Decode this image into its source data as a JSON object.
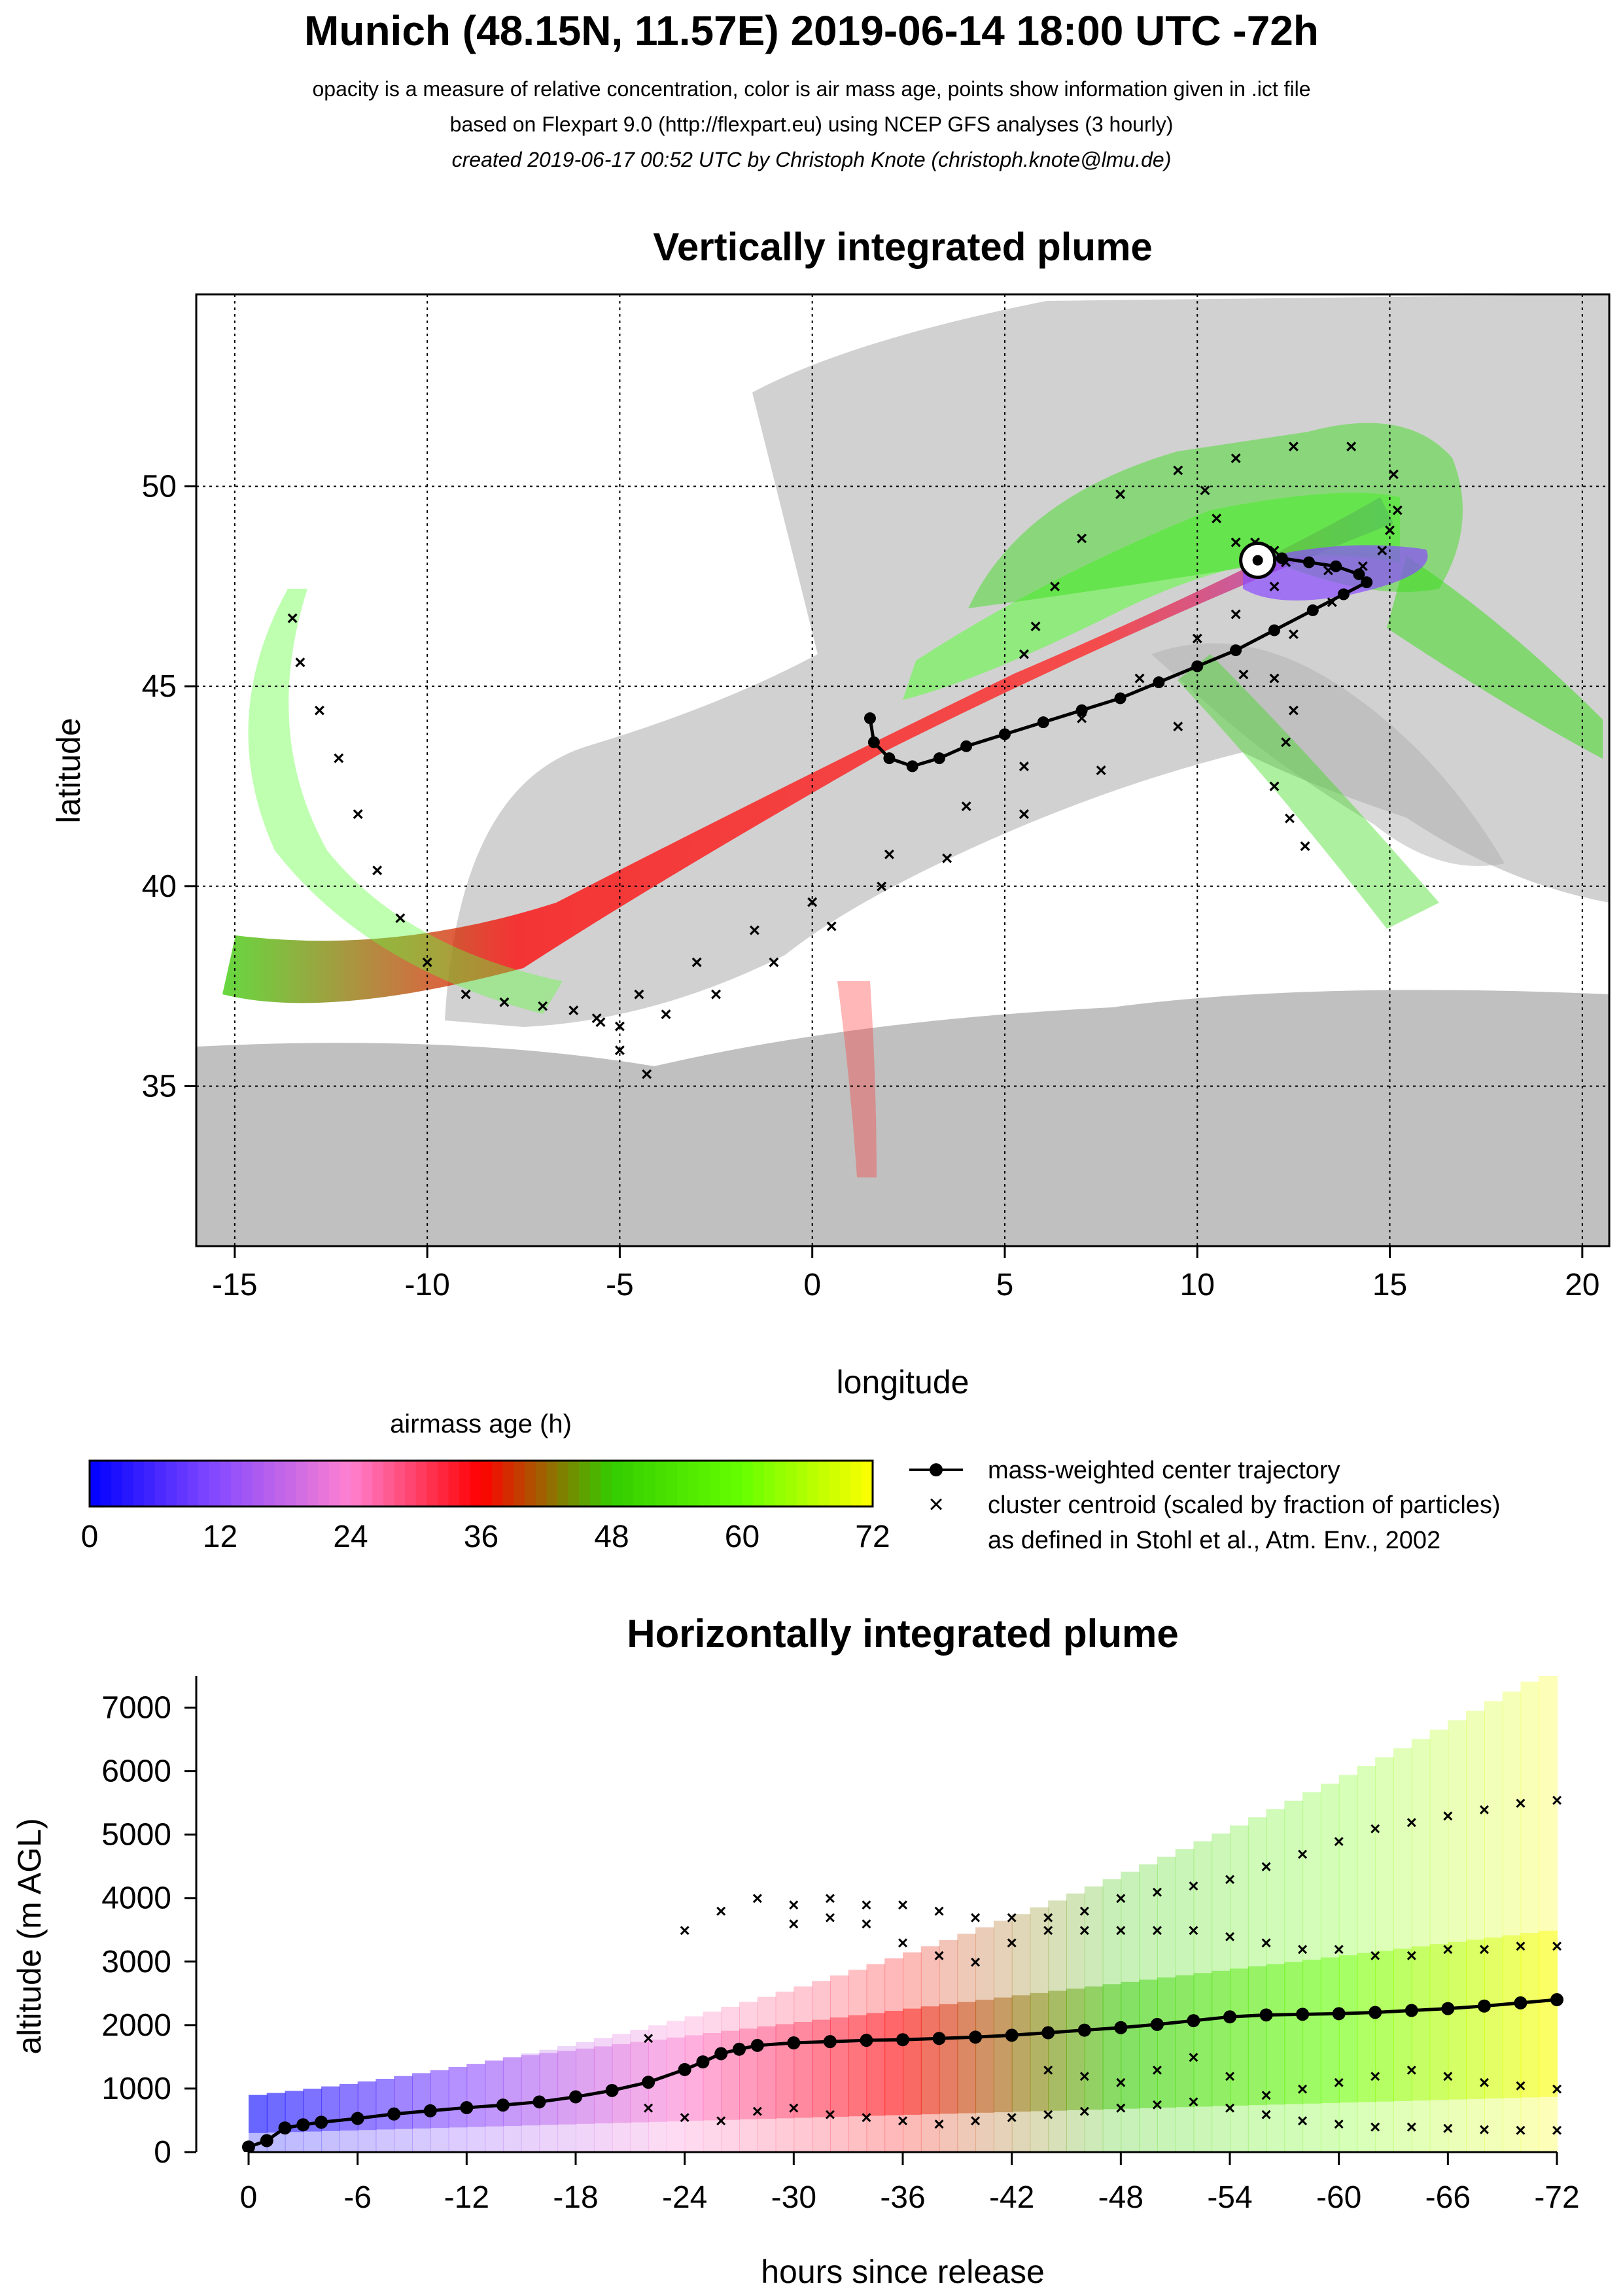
{
  "header": {
    "title": "Munich (48.15N, 11.57E) 2019-06-14 18:00 UTC -72h",
    "line1": "opacity is a measure of relative concentration, color is air mass age, points show information given in .ict file",
    "line2": "based on Flexpart 9.0 (http://flexpart.eu) using NCEP GFS analyses (3 hourly)",
    "line3": "created 2019-06-17 00:52 UTC by Christoph Knote (christoph.knote@lmu.de)"
  },
  "map_panel": {
    "title": "Vertically integrated plume",
    "xlabel": "longitude",
    "ylabel": "latitude"
  },
  "colorbar": {
    "title": "airmass age (h)",
    "range": [
      0,
      72
    ],
    "ticks": [
      "0",
      "12",
      "24",
      "36",
      "48",
      "60",
      "72"
    ],
    "stops": [
      {
        "age": 0,
        "color": "#0000ff"
      },
      {
        "age": 12,
        "color": "#8a4cff"
      },
      {
        "age": 24,
        "color": "#ff80d0"
      },
      {
        "age": 36,
        "color": "#ff0000"
      },
      {
        "age": 42,
        "color": "#996600"
      },
      {
        "age": 48,
        "color": "#33cc00"
      },
      {
        "age": 60,
        "color": "#66ff00"
      },
      {
        "age": 72,
        "color": "#ffff00"
      }
    ]
  },
  "legend": {
    "line_label": "mass-weighted center trajectory",
    "cross_label_1": "cluster centroid (scaled by fraction of particles)",
    "cross_label_2": "as defined in Stohl et al., Atm. Env., 2002"
  },
  "profile_panel": {
    "title": "Horizontally integrated plume",
    "xlabel": "hours since release",
    "ylabel": "altitude (m AGL)"
  },
  "chart_data": [
    {
      "type": "scatter",
      "title": "Vertically integrated plume",
      "xlabel": "longitude",
      "ylabel": "latitude",
      "xlim": [
        -16,
        20.7
      ],
      "ylim": [
        31,
        54.8
      ],
      "xticks": [
        -15,
        -10,
        -5,
        0,
        5,
        10,
        15,
        20
      ],
      "yticks": [
        35,
        40,
        45,
        50
      ],
      "grid": true,
      "release_point": {
        "lon": 11.57,
        "lat": 48.15
      },
      "center_trajectory": {
        "name": "mass-weighted center trajectory",
        "lon": [
          11.57,
          12.2,
          12.9,
          13.6,
          14.2,
          14.4,
          13.8,
          13.0,
          12.0,
          11.0,
          10.0,
          9.0,
          8.0,
          7.0,
          6.0,
          5.0,
          4.0,
          3.3,
          2.6,
          2.0,
          1.6,
          1.5
        ],
        "lat": [
          48.15,
          48.2,
          48.1,
          48.0,
          47.8,
          47.6,
          47.3,
          46.9,
          46.4,
          45.9,
          45.5,
          45.1,
          44.7,
          44.4,
          44.1,
          43.8,
          43.5,
          43.2,
          43.0,
          43.2,
          43.6,
          44.2
        ]
      },
      "cluster_centroids": [
        {
          "lon": [
            12.3,
            13.4,
            14.3,
            14.8,
            15.0,
            15.2,
            15.1,
            14.0,
            12.5,
            11.0,
            9.5,
            8.0,
            7.0,
            6.3,
            5.8,
            5.5
          ],
          "lat": [
            48.1,
            47.9,
            48.0,
            48.4,
            48.9,
            49.4,
            50.3,
            51.0,
            51.0,
            50.7,
            50.4,
            49.8,
            48.7,
            47.5,
            46.5,
            45.8
          ]
        },
        {
          "lon": [
            12.0,
            11.0,
            10.0,
            8.5,
            7.0,
            5.5,
            4.0,
            2.0,
            0.0,
            -1.5,
            -3.0,
            -4.5,
            -5.5,
            -5.0,
            -4.3
          ],
          "lat": [
            47.5,
            46.8,
            46.2,
            45.2,
            44.2,
            43.0,
            42.0,
            40.8,
            39.6,
            38.9,
            38.1,
            37.3,
            36.6,
            35.9,
            35.3
          ]
        },
        {
          "lon": [
            13.5,
            12.5,
            11.2,
            9.5,
            7.5,
            5.5,
            3.5,
            1.8,
            0.5,
            -1.0,
            -2.5,
            -3.8,
            -5.0
          ],
          "lat": [
            47.1,
            46.3,
            45.3,
            44.0,
            42.9,
            41.8,
            40.7,
            40.0,
            39.0,
            38.1,
            37.3,
            36.8,
            36.5
          ]
        },
        {
          "lon": [
            -13.5,
            -13.3,
            -12.8,
            -12.3,
            -11.8,
            -11.3,
            -10.7,
            -10.0,
            -9.0,
            -8.0,
            -7.0,
            -6.2,
            -5.6
          ],
          "lat": [
            46.7,
            45.6,
            44.4,
            43.2,
            41.8,
            40.4,
            39.2,
            38.1,
            37.3,
            37.1,
            37.0,
            36.9,
            36.7
          ]
        },
        {
          "lon": [
            12.0,
            12.5,
            12.3,
            12.0,
            12.4,
            12.8
          ],
          "lat": [
            45.2,
            44.4,
            43.6,
            42.5,
            41.7,
            41.0
          ]
        },
        {
          "lon": [
            10.2,
            10.5,
            11.0,
            11.5,
            12.0
          ],
          "lat": [
            49.9,
            49.2,
            48.6,
            48.6,
            48.4
          ]
        }
      ]
    },
    {
      "type": "heatmap",
      "title": "Horizontally integrated plume",
      "xlabel": "hours since release",
      "ylabel": "altitude (m AGL)",
      "xlim": [
        0,
        -72
      ],
      "ylim": [
        0,
        7500
      ],
      "xticks": [
        "0",
        "-6",
        "-12",
        "-18",
        "-24",
        "-30",
        "-36",
        "-42",
        "-48",
        "-54",
        "-60",
        "-66",
        "-72"
      ],
      "yticks": [
        "0",
        "1000",
        "2000",
        "3000",
        "4000",
        "5000",
        "6000",
        "7000"
      ],
      "center_trajectory": {
        "name": "mass-weighted center trajectory",
        "hours": [
          0,
          -1,
          -2,
          -3,
          -4,
          -6,
          -8,
          -10,
          -12,
          -14,
          -16,
          -18,
          -20,
          -22,
          -24,
          -25,
          -26,
          -27,
          -28,
          -30,
          -32,
          -34,
          -36,
          -38,
          -40,
          -42,
          -44,
          -46,
          -48,
          -50,
          -52,
          -54,
          -56,
          -58,
          -60,
          -62,
          -64,
          -66,
          -68,
          -70,
          -72
        ],
        "altitude": [
          80,
          180,
          380,
          430,
          470,
          530,
          600,
          650,
          700,
          740,
          790,
          870,
          970,
          1100,
          1300,
          1420,
          1550,
          1620,
          1680,
          1720,
          1740,
          1760,
          1770,
          1790,
          1810,
          1840,
          1880,
          1920,
          1960,
          2010,
          2070,
          2130,
          2160,
          2170,
          2180,
          2200,
          2230,
          2260,
          2300,
          2350,
          2400
        ]
      },
      "cluster_centroids": [
        {
          "hours": [
            -20,
            -22,
            -24,
            -26,
            -28,
            -30,
            -32,
            -34,
            -36,
            -38,
            -40,
            -42,
            -44,
            -46,
            -48,
            -50,
            -52,
            -54,
            -56,
            -58,
            -60,
            -62,
            -64,
            -66,
            -68,
            -70,
            -72
          ],
          "altitude": [
            1000,
            1800,
            3500,
            3800,
            4000,
            3900,
            4000,
            3900,
            3900,
            3800,
            3700,
            3700,
            3700,
            3800,
            4000,
            4100,
            4200,
            4300,
            4500,
            4700,
            4900,
            5100,
            5200,
            5300,
            5400,
            5500,
            5550
          ]
        },
        {
          "hours": [
            -30,
            -32,
            -34,
            -36,
            -38,
            -40,
            -42,
            -44,
            -46,
            -48,
            -50,
            -52,
            -54,
            -56,
            -58,
            -60,
            -62,
            -64,
            -66,
            -68,
            -70,
            -72
          ],
          "altitude": [
            3600,
            3700,
            3600,
            3300,
            3100,
            3000,
            3300,
            3500,
            3500,
            3500,
            3500,
            3500,
            3400,
            3300,
            3200,
            3200,
            3100,
            3100,
            3200,
            3200,
            3250,
            3250
          ]
        },
        {
          "hours": [
            -22,
            -24,
            -26,
            -28,
            -30,
            -32,
            -34,
            -36,
            -38,
            -40,
            -42,
            -44,
            -46,
            -48,
            -50,
            -52,
            -54,
            -56,
            -58,
            -60,
            -62,
            -64,
            -66,
            -68,
            -70,
            -72
          ],
          "altitude": [
            700,
            550,
            500,
            650,
            700,
            600,
            550,
            500,
            450,
            500,
            550,
            600,
            650,
            700,
            750,
            800,
            700,
            600,
            500,
            450,
            400,
            400,
            380,
            360,
            350,
            350
          ]
        },
        {
          "hours": [
            -44,
            -46,
            -48,
            -50,
            -52,
            -54,
            -56,
            -58,
            -60,
            -62,
            -64,
            -66,
            -68,
            -70,
            -72
          ],
          "altitude": [
            1300,
            1200,
            1100,
            1300,
            1500,
            1200,
            900,
            1000,
            1100,
            1200,
            1300,
            1200,
            1100,
            1050,
            1000
          ]
        }
      ]
    }
  ]
}
